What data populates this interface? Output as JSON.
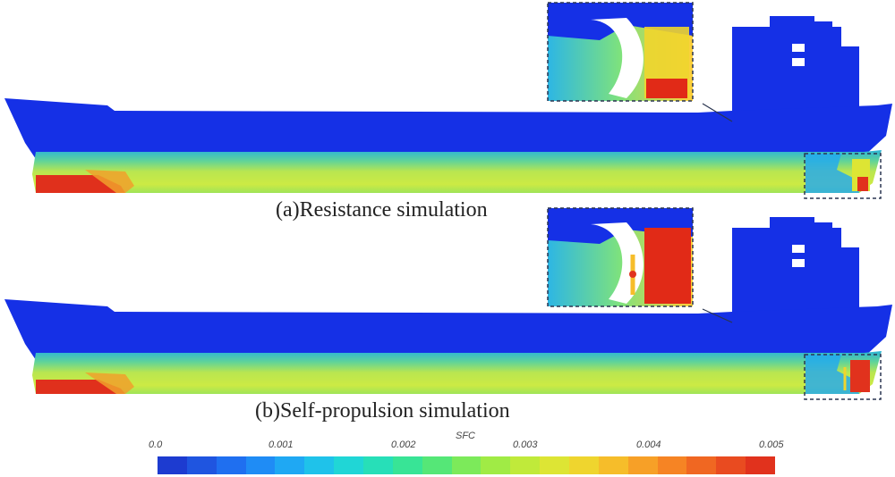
{
  "captions": {
    "resistance": "(a)Resistance simulation",
    "self_propulsion": "(b)Self-propulsion simulation"
  },
  "colorbar": {
    "title": "SFC",
    "ticks": [
      "0.0",
      "0.001",
      "0.002",
      "0.003",
      "0.004",
      "0.005"
    ],
    "colors": [
      "#1d3bd0",
      "#1f55e0",
      "#1f6ff0",
      "#1f8cf5",
      "#1fa8f3",
      "#1fc2ea",
      "#20d6d6",
      "#27dfb8",
      "#38e496",
      "#55e777",
      "#7cea5a",
      "#a0eb45",
      "#c0ea3a",
      "#dde534",
      "#efd52e",
      "#f6bd2a",
      "#f7a027",
      "#f68424",
      "#f06722",
      "#e94b20",
      "#e1321d"
    ]
  },
  "surface_colors": {
    "hull_top": "#1530e6",
    "hull_low_fill": "#b7e84e",
    "bow_high": "#e0301c",
    "propeller_high": "#e12a17"
  }
}
